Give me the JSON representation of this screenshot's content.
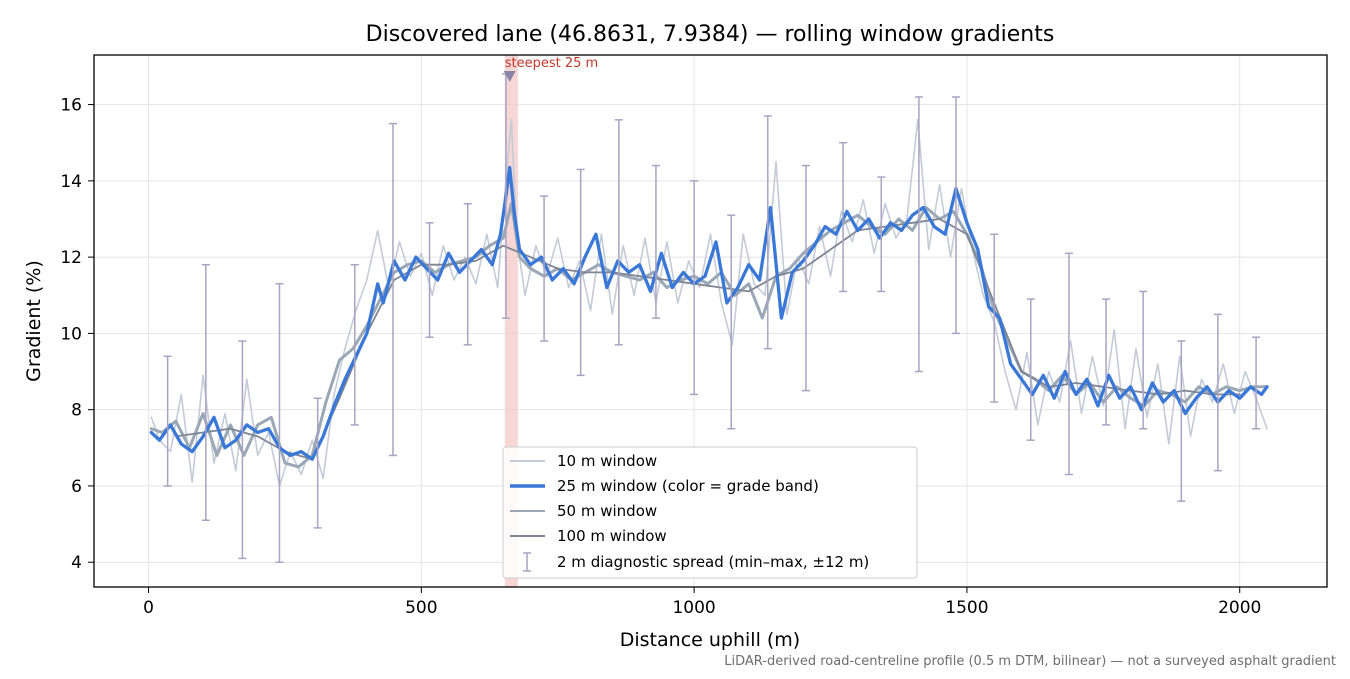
{
  "chart_data": {
    "type": "line",
    "title": "Discovered lane (46.8631, 7.9384) — rolling window gradients",
    "xlabel": "Distance uphill (m)",
    "ylabel": "Gradient (%)",
    "xlim": [
      -100,
      2160
    ],
    "ylim": [
      3.35,
      17.3
    ],
    "x_ticks": [
      0,
      500,
      1000,
      1500,
      2000
    ],
    "y_ticks": [
      4,
      6,
      8,
      10,
      12,
      14,
      16
    ],
    "grid": true,
    "legend_position": "lower center",
    "footnote": "LiDAR-derived road-centreline profile (0.5 m DTM, bilinear) — not a surveyed asphalt gradient",
    "annotation": {
      "text": "steepest 25 m",
      "x": 662,
      "y": 16.75,
      "band": [
        653,
        677
      ]
    },
    "colors": {
      "w10": "#c3ccd6",
      "w25": "#3a78d8",
      "w50": "#9aa8b6",
      "w100": "#7f8593",
      "errorbar": "#a9a3c3",
      "band": "#f4c8c8",
      "annotation": "#c0392b"
    },
    "series": [
      {
        "name": "10 m window",
        "x": [
          5,
          20,
          40,
          60,
          80,
          100,
          120,
          140,
          160,
          180,
          200,
          220,
          240,
          260,
          280,
          300,
          320,
          340,
          360,
          380,
          400,
          420,
          440,
          460,
          480,
          500,
          520,
          540,
          560,
          580,
          600,
          620,
          640,
          655,
          665,
          675,
          690,
          710,
          730,
          750,
          770,
          790,
          810,
          830,
          850,
          870,
          890,
          910,
          930,
          950,
          970,
          990,
          1010,
          1030,
          1050,
          1070,
          1090,
          1110,
          1130,
          1150,
          1170,
          1190,
          1210,
          1230,
          1250,
          1270,
          1290,
          1310,
          1330,
          1350,
          1370,
          1390,
          1410,
          1430,
          1450,
          1470,
          1490,
          1510,
          1530,
          1550,
          1570,
          1590,
          1610,
          1630,
          1650,
          1670,
          1690,
          1710,
          1730,
          1750,
          1770,
          1790,
          1810,
          1830,
          1850,
          1870,
          1890,
          1910,
          1930,
          1950,
          1970,
          1990,
          2010,
          2030,
          2050
        ],
        "y": [
          7.8,
          7.2,
          6.9,
          8.4,
          6.1,
          8.9,
          6.6,
          7.9,
          6.4,
          8.8,
          6.8,
          7.4,
          6.0,
          6.9,
          6.3,
          7.2,
          6.2,
          8.4,
          9.6,
          10.6,
          11.4,
          12.7,
          11.2,
          12.4,
          11.5,
          12.1,
          11.0,
          12.3,
          11.4,
          12.0,
          11.3,
          12.6,
          11.2,
          14.0,
          15.6,
          12.5,
          11.0,
          12.3,
          11.5,
          12.5,
          11.2,
          11.9,
          10.6,
          12.6,
          10.5,
          12.3,
          11.0,
          12.5,
          10.8,
          12.4,
          10.8,
          11.9,
          11.2,
          12.6,
          10.8,
          9.7,
          12.6,
          11.3,
          11.0,
          14.5,
          10.5,
          12.0,
          11.3,
          12.8,
          11.5,
          13.2,
          12.4,
          13.5,
          12.1,
          13.4,
          12.5,
          13.0,
          15.6,
          12.2,
          13.9,
          12.0,
          13.8,
          12.2,
          11.0,
          10.3,
          9.0,
          8.0,
          9.5,
          7.6,
          9.0,
          8.2,
          9.8,
          7.9,
          9.4,
          8.1,
          10.1,
          7.5,
          9.6,
          7.8,
          9.2,
          7.1,
          9.4,
          7.3,
          8.8,
          8.2,
          9.2,
          7.9,
          9.0,
          8.3,
          7.5
        ]
      },
      {
        "name": "25 m window (color = grade band)",
        "x": [
          5,
          20,
          40,
          60,
          80,
          100,
          120,
          140,
          160,
          180,
          200,
          220,
          240,
          260,
          280,
          300,
          320,
          340,
          360,
          380,
          400,
          420,
          430,
          450,
          470,
          490,
          510,
          530,
          550,
          570,
          590,
          610,
          630,
          645,
          655,
          662,
          670,
          680,
          700,
          720,
          740,
          760,
          780,
          800,
          820,
          840,
          860,
          880,
          900,
          920,
          940,
          960,
          980,
          1000,
          1020,
          1040,
          1060,
          1080,
          1100,
          1120,
          1140,
          1160,
          1180,
          1200,
          1220,
          1240,
          1260,
          1280,
          1300,
          1320,
          1340,
          1360,
          1380,
          1400,
          1420,
          1440,
          1460,
          1480,
          1500,
          1520,
          1540,
          1560,
          1580,
          1600,
          1620,
          1640,
          1660,
          1680,
          1700,
          1720,
          1740,
          1760,
          1780,
          1800,
          1820,
          1840,
          1860,
          1880,
          1900,
          1920,
          1940,
          1960,
          1980,
          2000,
          2020,
          2040,
          2050
        ],
        "y": [
          7.4,
          7.2,
          7.6,
          7.1,
          6.9,
          7.3,
          7.8,
          7.0,
          7.2,
          7.6,
          7.4,
          7.5,
          7.0,
          6.8,
          6.9,
          6.7,
          7.3,
          8.1,
          8.8,
          9.4,
          10.0,
          11.3,
          10.8,
          11.9,
          11.4,
          12.0,
          11.7,
          11.4,
          12.1,
          11.6,
          11.9,
          12.2,
          11.8,
          12.6,
          13.6,
          14.35,
          13.2,
          12.2,
          11.8,
          12.0,
          11.4,
          11.7,
          11.3,
          12.0,
          12.6,
          11.2,
          11.9,
          11.6,
          11.8,
          11.1,
          12.1,
          11.2,
          11.6,
          11.3,
          11.5,
          12.4,
          10.8,
          11.2,
          11.8,
          11.4,
          13.3,
          10.4,
          11.6,
          11.9,
          12.3,
          12.8,
          12.6,
          13.2,
          12.7,
          13.0,
          12.5,
          12.9,
          12.7,
          13.1,
          13.3,
          12.8,
          12.6,
          13.8,
          12.9,
          12.2,
          10.7,
          10.4,
          9.2,
          8.8,
          8.4,
          8.9,
          8.3,
          9.0,
          8.4,
          8.8,
          8.1,
          8.9,
          8.3,
          8.6,
          8.0,
          8.7,
          8.2,
          8.5,
          7.9,
          8.3,
          8.6,
          8.2,
          8.5,
          8.3,
          8.6,
          8.4,
          8.6
        ]
      },
      {
        "name": "50 m window",
        "x": [
          5,
          25,
          50,
          75,
          100,
          125,
          150,
          175,
          200,
          225,
          250,
          275,
          300,
          325,
          350,
          375,
          400,
          425,
          450,
          475,
          500,
          525,
          550,
          575,
          600,
          625,
          650,
          665,
          680,
          700,
          725,
          750,
          775,
          800,
          825,
          850,
          875,
          900,
          925,
          950,
          975,
          1000,
          1025,
          1050,
          1075,
          1100,
          1125,
          1150,
          1175,
          1200,
          1225,
          1250,
          1275,
          1300,
          1325,
          1350,
          1375,
          1400,
          1425,
          1450,
          1475,
          1500,
          1525,
          1550,
          1575,
          1600,
          1625,
          1650,
          1675,
          1700,
          1725,
          1750,
          1775,
          1800,
          1825,
          1850,
          1875,
          1900,
          1925,
          1950,
          1975,
          2000,
          2025,
          2050
        ],
        "y": [
          7.5,
          7.4,
          7.7,
          7.0,
          7.9,
          6.8,
          7.6,
          6.8,
          7.6,
          7.8,
          6.6,
          6.5,
          6.8,
          8.2,
          9.3,
          9.6,
          10.2,
          10.9,
          11.6,
          11.8,
          11.9,
          11.6,
          11.8,
          11.9,
          12.0,
          12.3,
          12.5,
          13.4,
          12.0,
          11.7,
          11.5,
          11.7,
          11.4,
          11.6,
          11.8,
          11.6,
          11.5,
          11.4,
          11.6,
          11.2,
          11.4,
          11.5,
          11.3,
          11.6,
          11.0,
          11.3,
          10.4,
          11.5,
          11.7,
          12.1,
          12.4,
          12.7,
          12.9,
          13.1,
          12.8,
          12.6,
          13.0,
          12.7,
          13.3,
          13.0,
          13.2,
          12.6,
          11.8,
          10.6,
          9.8,
          9.0,
          8.8,
          8.5,
          8.9,
          8.4,
          8.7,
          8.2,
          8.6,
          8.3,
          8.1,
          8.5,
          8.4,
          8.2,
          8.6,
          8.4,
          8.6,
          8.5,
          8.6,
          8.6
        ]
      },
      {
        "name": "100 m window",
        "x": [
          50,
          100,
          150,
          200,
          250,
          300,
          350,
          400,
          450,
          500,
          550,
          600,
          650,
          700,
          750,
          800,
          850,
          900,
          950,
          1000,
          1050,
          1100,
          1150,
          1200,
          1250,
          1300,
          1350,
          1400,
          1450,
          1500,
          1550,
          1600,
          1650,
          1700,
          1750,
          1800,
          1850,
          1900,
          1950,
          2000
        ],
        "y": [
          7.3,
          7.4,
          7.5,
          7.3,
          6.9,
          6.7,
          8.3,
          10.0,
          11.4,
          11.8,
          11.8,
          11.9,
          12.3,
          12.0,
          11.7,
          11.6,
          11.6,
          11.5,
          11.4,
          11.3,
          11.2,
          11.1,
          11.5,
          11.7,
          12.2,
          12.7,
          12.8,
          12.9,
          13.0,
          12.6,
          10.8,
          9.0,
          8.6,
          8.7,
          8.6,
          8.5,
          8.4,
          8.5,
          8.4,
          8.4
        ]
      },
      {
        "name": "2 m diagnostic spread (min–max, ±12 m)",
        "x": [
          35,
          105,
          172,
          240,
          310,
          378,
          448,
          515,
          585,
          655,
          725,
          792,
          862,
          930,
          1000,
          1068,
          1135,
          1205,
          1273,
          1343,
          1412,
          1480,
          1550,
          1617,
          1687,
          1755,
          1823,
          1893,
          1960,
          2030
        ],
        "low": [
          6.0,
          5.1,
          4.1,
          4.0,
          4.9,
          7.6,
          6.8,
          9.9,
          9.7,
          10.4,
          9.8,
          8.9,
          9.7,
          10.4,
          8.4,
          7.5,
          9.6,
          8.5,
          11.1,
          11.1,
          9.0,
          10.0,
          8.2,
          7.2,
          6.3,
          7.6,
          7.5,
          5.6,
          6.4,
          7.5
        ],
        "high": [
          9.4,
          11.8,
          9.8,
          11.3,
          8.3,
          11.8,
          15.5,
          12.9,
          13.4,
          16.8,
          13.6,
          14.3,
          15.6,
          14.4,
          14.0,
          13.1,
          15.7,
          14.4,
          15.0,
          14.1,
          16.2,
          16.2,
          12.6,
          10.9,
          12.1,
          10.9,
          11.1,
          9.8,
          10.5,
          9.9
        ]
      }
    ]
  }
}
